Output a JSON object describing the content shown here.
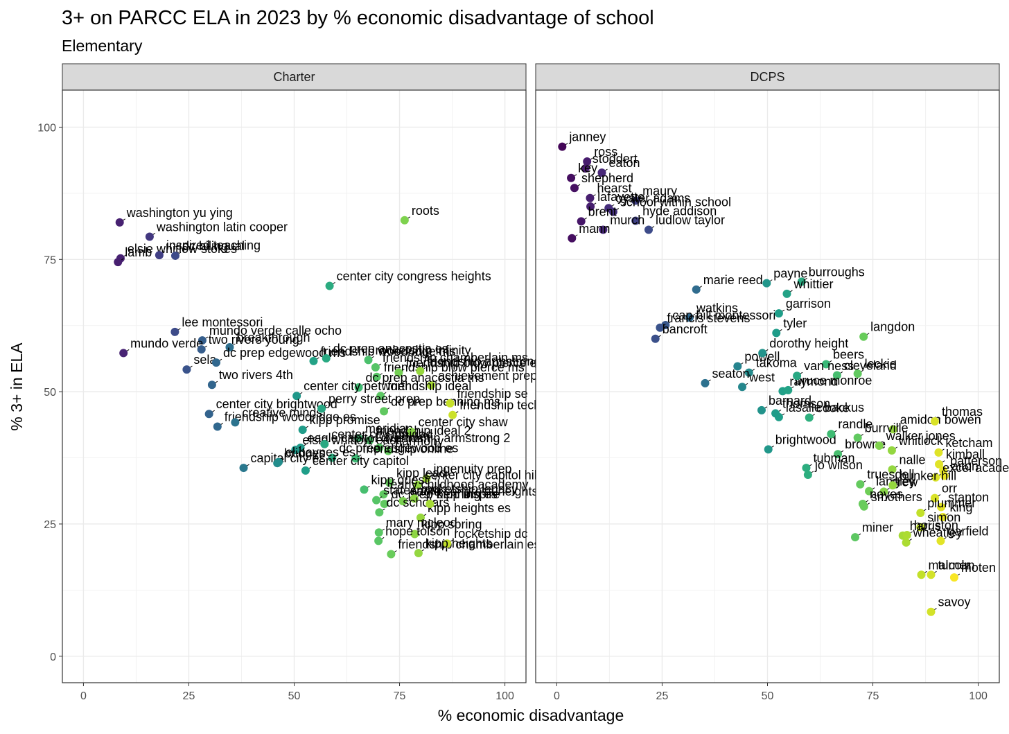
{
  "chart_data": {
    "type": "scatter",
    "title": "3+ on PARCC ELA in 2023 by % economic disadvantage of school",
    "subtitle": "Elementary",
    "xlabel": "% economic disadvantage",
    "ylabel": "% 3+ in ELA",
    "xlim": [
      -5,
      105
    ],
    "ylim": [
      -5,
      107
    ],
    "x_ticks": [
      "0",
      "25",
      "50",
      "75",
      "100"
    ],
    "y_ticks": [
      "0",
      "25",
      "50",
      "75",
      "100"
    ],
    "grid": true,
    "color_scale": "viridis (by % economic disadvantage)",
    "panels": [
      {
        "name": "Charter",
        "points": [
          {
            "label": "washington yu ying",
            "x": 8.6,
            "y": 82
          },
          {
            "label": "washington latin cooper",
            "x": 15.7,
            "y": 79.3
          },
          {
            "label": "elsie whitlow stokes",
            "x": 8.8,
            "y": 75.2
          },
          {
            "label": "lamb",
            "x": 8.2,
            "y": 74.5
          },
          {
            "label": "inspired teaching",
            "x": 18,
            "y": 75.8
          },
          {
            "label": "dc bilingual",
            "x": 21.8,
            "y": 75.7
          },
          {
            "label": "roots",
            "x": 76.2,
            "y": 82.4
          },
          {
            "label": "center city congress heights",
            "x": 58.4,
            "y": 70
          },
          {
            "label": "lee montessori",
            "x": 21.7,
            "y": 61.3
          },
          {
            "label": "mundo verde calle ocho",
            "x": 28.2,
            "y": 59.7
          },
          {
            "label": "mundo verde",
            "x": 9.5,
            "y": 57.3
          },
          {
            "label": "two rivers young",
            "x": 28,
            "y": 58
          },
          {
            "label": "breakthrough",
            "x": 34.7,
            "y": 58.4
          },
          {
            "label": "sela",
            "x": 24.5,
            "y": 54.2
          },
          {
            "label": "dc prep edgewood ms",
            "x": 31.5,
            "y": 55.5
          },
          {
            "label": "two rivers 4th",
            "x": 30.5,
            "y": 51.3
          },
          {
            "label": "friendship woodridge ms",
            "x": 54.6,
            "y": 55.8
          },
          {
            "label": "dc prep anacostia es",
            "x": 57.6,
            "y": 56.3
          },
          {
            "label": "friendship chamberlain ms",
            "x": 69.3,
            "y": 54.6
          },
          {
            "label": "rocketship infinity",
            "x": 67.6,
            "y": 56
          },
          {
            "label": "friendship blow pierce ms",
            "x": 69.6,
            "y": 52.8
          },
          {
            "label": "friendship blow pierce es",
            "x": 74.8,
            "y": 53.6
          },
          {
            "label": "friendship armstrong",
            "x": 79.9,
            "y": 53.9
          },
          {
            "label": "achievement prep",
            "x": 82.5,
            "y": 51.2
          },
          {
            "label": "dc prep anacostia ms",
            "x": 65.3,
            "y": 50.8
          },
          {
            "label": "friendship ideal",
            "x": 70.5,
            "y": 49.2
          },
          {
            "label": "center city petworth",
            "x": 50.6,
            "y": 49.2
          },
          {
            "label": "center city brightwood",
            "x": 29.8,
            "y": 45.8
          },
          {
            "label": "friendship woodridge es",
            "x": 31.8,
            "y": 43.4
          },
          {
            "label": "creative minds",
            "x": 36,
            "y": 44.2
          },
          {
            "label": "perry street prep",
            "x": 56.5,
            "y": 46.8
          },
          {
            "label": "dc prep benning ms",
            "x": 71.3,
            "y": 46.3
          },
          {
            "label": "friendship se",
            "x": 87,
            "y": 47.8
          },
          {
            "label": "friendship tech",
            "x": 87.6,
            "y": 45.6
          },
          {
            "label": "kipp promise",
            "x": 52,
            "y": 42.8
          },
          {
            "label": "meridian",
            "x": 65.2,
            "y": 41.2
          },
          {
            "label": "friendship ideal 2",
            "x": 67.9,
            "y": 40.8
          },
          {
            "label": "center city shaw",
            "x": 77.8,
            "y": 42.4
          },
          {
            "label": "eagle capitol riverfront",
            "x": 51.5,
            "y": 39.4
          },
          {
            "label": "elsie whitlow east",
            "x": 50.3,
            "y": 39
          },
          {
            "label": "center city trinidad",
            "x": 57.2,
            "y": 40.1
          },
          {
            "label": "friendship armstrong 2",
            "x": 70.2,
            "y": 39.4
          },
          {
            "label": "harmony",
            "x": 72.3,
            "y": 38.8
          },
          {
            "label": "bridges",
            "x": 46,
            "y": 36.5
          },
          {
            "label": "dc prep edgewood es",
            "x": 59,
            "y": 37.5
          },
          {
            "label": "friendship online",
            "x": 64.6,
            "y": 37.4
          },
          {
            "label": "center city capitol",
            "x": 52.7,
            "y": 35.1
          },
          {
            "label": "capital city es",
            "x": 38,
            "y": 35.6
          },
          {
            "label": "el haynes es",
            "x": 46.3,
            "y": 36.7
          },
          {
            "label": "ingenuity prep",
            "x": 81.4,
            "y": 33.6
          },
          {
            "label": "kipp lead",
            "x": 72.6,
            "y": 32.8
          },
          {
            "label": "center city capitol hill",
            "x": 79.3,
            "y": 32.4
          },
          {
            "label": "kipp quest",
            "x": 66.6,
            "y": 31.5
          },
          {
            "label": "early childhood academy",
            "x": 71.2,
            "y": 30.6
          },
          {
            "label": "statesman",
            "x": 69.5,
            "y": 29.5
          },
          {
            "label": "dc prep benning es",
            "x": 71.4,
            "y": 28.8
          },
          {
            "label": "eagle congress heights",
            "x": 75.8,
            "y": 29.3
          },
          {
            "label": "rocketship legacy",
            "x": 78.5,
            "y": 29.8
          },
          {
            "label": "kipp heights es",
            "x": 80,
            "y": 26.2
          },
          {
            "label": "dc scholars",
            "x": 70.2,
            "y": 27.2
          },
          {
            "label": "kipp inspire",
            "x": 82.2,
            "y": 28.8
          },
          {
            "label": "mary mcleod",
            "x": 70.1,
            "y": 23.4
          },
          {
            "label": "kipp spring",
            "x": 78.6,
            "y": 23.1
          },
          {
            "label": "friendship chamberlain es",
            "x": 73,
            "y": 19.3
          },
          {
            "label": "rocketship dc",
            "x": 86.3,
            "y": 21.3
          },
          {
            "label": "hope tolson",
            "x": 70,
            "y": 21.8
          },
          {
            "label": "kipp heights",
            "x": 79.5,
            "y": 19.5
          }
        ]
      },
      {
        "name": "DCPS",
        "points": [
          {
            "label": "janney",
            "x": 1.3,
            "y": 96.3
          },
          {
            "label": "ross",
            "x": 7.2,
            "y": 93.5
          },
          {
            "label": "stoddert",
            "x": 6.8,
            "y": 92.2
          },
          {
            "label": "eaton",
            "x": 10.7,
            "y": 91.4
          },
          {
            "label": "key",
            "x": 3.4,
            "y": 90.4
          },
          {
            "label": "shepherd",
            "x": 4.2,
            "y": 88.5
          },
          {
            "label": "maury",
            "x": 18.7,
            "y": 86.1
          },
          {
            "label": "hearst",
            "x": 7.9,
            "y": 86.6
          },
          {
            "label": "lafayette",
            "x": 8,
            "y": 85
          },
          {
            "label": "oyster adams",
            "x": 12.3,
            "y": 84.7
          },
          {
            "label": "school within school",
            "x": 13.4,
            "y": 84
          },
          {
            "label": "hyde addison",
            "x": 18.7,
            "y": 82.3
          },
          {
            "label": "brent",
            "x": 5.8,
            "y": 82.2
          },
          {
            "label": "murch",
            "x": 11,
            "y": 80.6
          },
          {
            "label": "ludlow taylor",
            "x": 21.8,
            "y": 80.6
          },
          {
            "label": "mann",
            "x": 3.6,
            "y": 79
          },
          {
            "label": "payne",
            "x": 49.8,
            "y": 70.5
          },
          {
            "label": "burroughs",
            "x": 58.1,
            "y": 70.8
          },
          {
            "label": "marie reed",
            "x": 33.1,
            "y": 69.3
          },
          {
            "label": "whittier",
            "x": 54.6,
            "y": 68.5
          },
          {
            "label": "watkins",
            "x": 31.5,
            "y": 64
          },
          {
            "label": "cap hill montessori",
            "x": 25.8,
            "y": 62.6
          },
          {
            "label": "garrison",
            "x": 52.7,
            "y": 64.8
          },
          {
            "label": "francis stevens",
            "x": 24.5,
            "y": 62.1
          },
          {
            "label": "tyler",
            "x": 52.1,
            "y": 61.1
          },
          {
            "label": "langdon",
            "x": 72.8,
            "y": 60.4
          },
          {
            "label": "bancroft",
            "x": 23.4,
            "y": 60
          },
          {
            "label": "beers",
            "x": 63.9,
            "y": 55.2
          },
          {
            "label": "powell",
            "x": 42.9,
            "y": 54.8
          },
          {
            "label": "takoma",
            "x": 45.6,
            "y": 53.6
          },
          {
            "label": "dorothy height",
            "x": 48.8,
            "y": 57.3
          },
          {
            "label": "leckie",
            "x": 71.4,
            "y": 53.4
          },
          {
            "label": "seaton",
            "x": 35.2,
            "y": 51.6
          },
          {
            "label": "west",
            "x": 44,
            "y": 50.9
          },
          {
            "label": "raymond",
            "x": 53.6,
            "y": 50.1
          },
          {
            "label": "cleveland",
            "x": 66.5,
            "y": 53.1
          },
          {
            "label": "bruce monroe",
            "x": 54.9,
            "y": 50.3
          },
          {
            "label": "barnard",
            "x": 48.6,
            "y": 46.5
          },
          {
            "label": "lasalle backus",
            "x": 52.7,
            "y": 45.2
          },
          {
            "label": "van ness",
            "x": 57,
            "y": 53
          },
          {
            "label": "amidon bowen",
            "x": 79.8,
            "y": 42.9
          },
          {
            "label": "thomas",
            "x": 89.7,
            "y": 44.4
          },
          {
            "label": "ketcham",
            "x": 90.6,
            "y": 38.5
          },
          {
            "label": "thomson",
            "x": 51.9,
            "y": 45.9
          },
          {
            "label": "cooke",
            "x": 59.9,
            "y": 45.1
          },
          {
            "label": "burrville",
            "x": 71.4,
            "y": 41.3
          },
          {
            "label": "kimball",
            "x": 90.7,
            "y": 36.3
          },
          {
            "label": "brightwood",
            "x": 50.2,
            "y": 39.1
          },
          {
            "label": "randle",
            "x": 65.1,
            "y": 42
          },
          {
            "label": "whitlock",
            "x": 79.5,
            "y": 38.9
          },
          {
            "label": "browne",
            "x": 66.7,
            "y": 38.2
          },
          {
            "label": "walker jones",
            "x": 76.5,
            "y": 39.8
          },
          {
            "label": "patterson",
            "x": 91.7,
            "y": 35.1
          },
          {
            "label": "tubman",
            "x": 59.2,
            "y": 35.6
          },
          {
            "label": "jo wilson",
            "x": 59.6,
            "y": 34.3
          },
          {
            "label": "nalle",
            "x": 79.6,
            "y": 35.3
          },
          {
            "label": "excel academy",
            "x": 89.9,
            "y": 33.8
          },
          {
            "label": "aiton",
            "x": 92,
            "y": 34.1
          },
          {
            "label": "truesdell",
            "x": 72,
            "y": 32.5
          },
          {
            "label": "drew",
            "x": 77.6,
            "y": 31.1
          },
          {
            "label": "langley",
            "x": 74.1,
            "y": 31.2
          },
          {
            "label": "bunker hill",
            "x": 79.7,
            "y": 32.3
          },
          {
            "label": "orr",
            "x": 89.7,
            "y": 29.9
          },
          {
            "label": "noyes",
            "x": 72.6,
            "y": 28.8
          },
          {
            "label": "smothers",
            "x": 72.9,
            "y": 28.3
          },
          {
            "label": "stanton",
            "x": 91.2,
            "y": 28.2
          },
          {
            "label": "plummer",
            "x": 86.3,
            "y": 27.1
          },
          {
            "label": "king",
            "x": 91.6,
            "y": 26.3
          },
          {
            "label": "simon",
            "x": 86.3,
            "y": 24.4
          },
          {
            "label": "harris",
            "x": 82.1,
            "y": 22.8
          },
          {
            "label": "miner",
            "x": 70.8,
            "y": 22.5
          },
          {
            "label": "houston",
            "x": 83.1,
            "y": 22.9
          },
          {
            "label": "garfield",
            "x": 91.1,
            "y": 21.8
          },
          {
            "label": "wheatley",
            "x": 82.9,
            "y": 21.5
          },
          {
            "label": "turner",
            "x": 88.8,
            "y": 15.4
          },
          {
            "label": "malcolm",
            "x": 86.5,
            "y": 15.4
          },
          {
            "label": "moten",
            "x": 94.3,
            "y": 14.9
          },
          {
            "label": "savoy",
            "x": 88.8,
            "y": 8.4
          }
        ]
      }
    ]
  }
}
